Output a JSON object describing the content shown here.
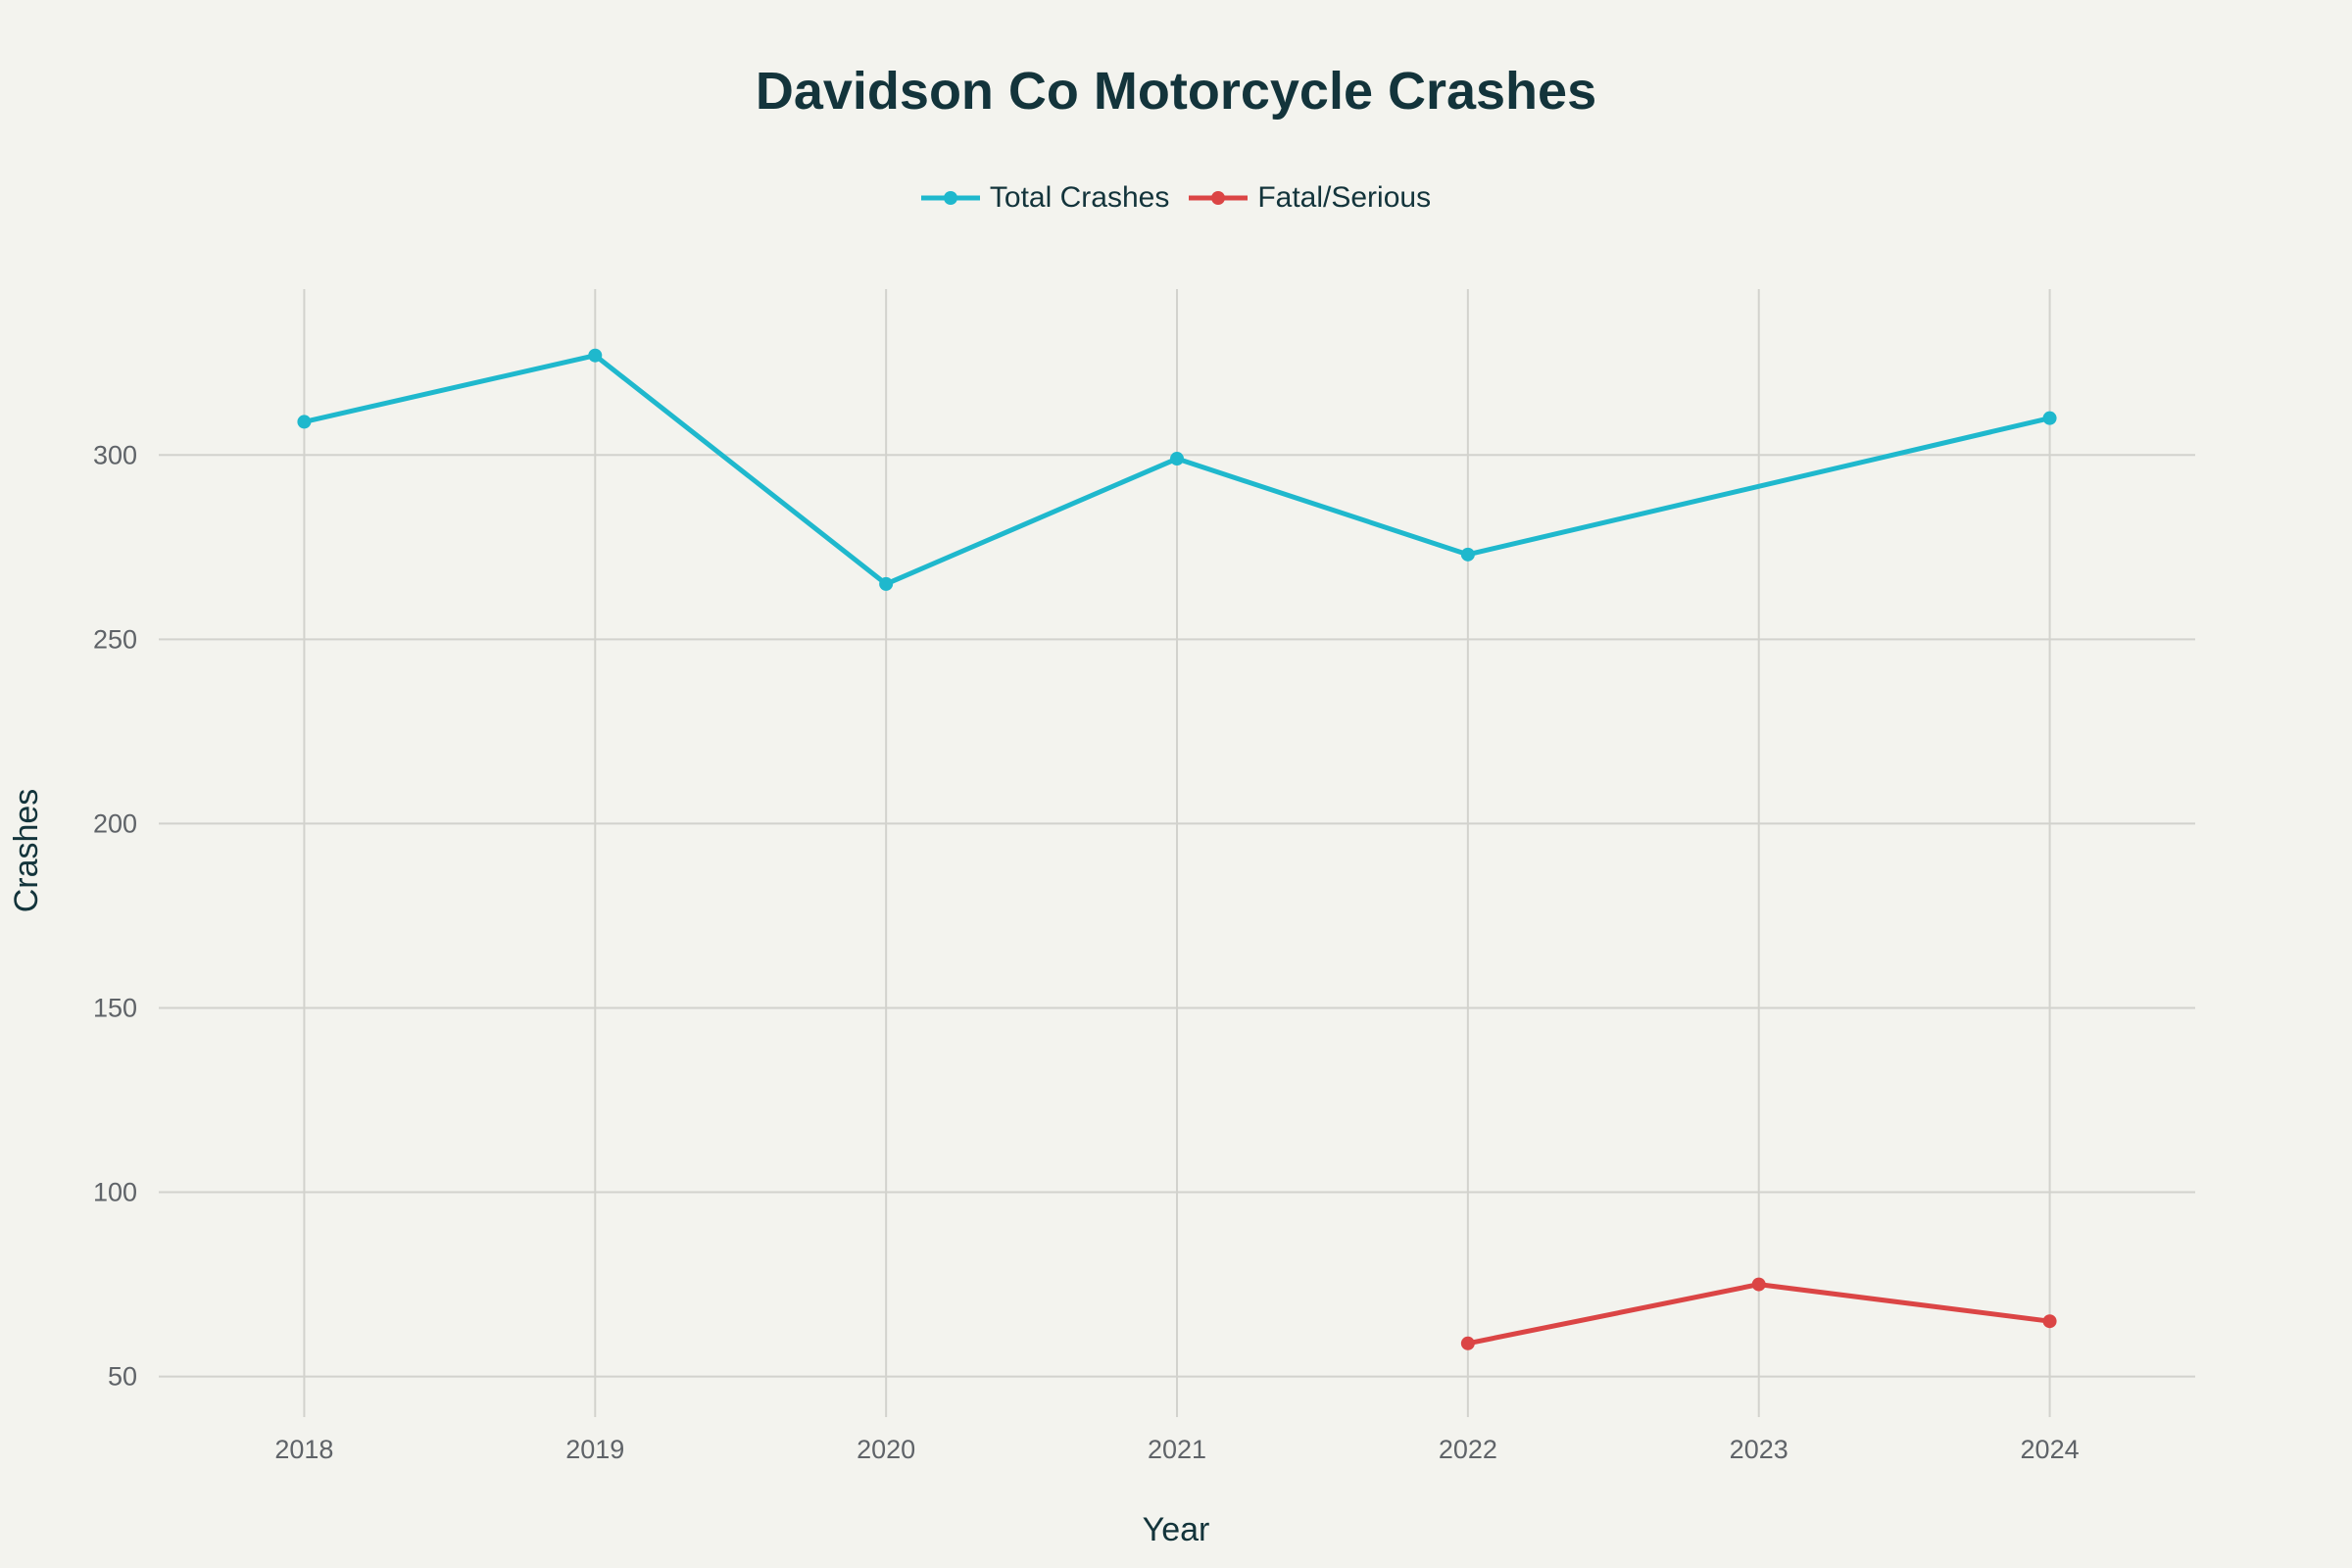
{
  "chart_data": {
    "type": "line",
    "title": "Davidson Co Motorcycle Crashes",
    "xlabel": "Year",
    "ylabel": "Crashes",
    "x": [
      2018,
      2019,
      2020,
      2021,
      2022,
      2023,
      2024
    ],
    "x_ticks": [
      "2018",
      "2019",
      "2020",
      "2021",
      "2022",
      "2023",
      "2024"
    ],
    "y_ticks": [
      "50",
      "100",
      "150",
      "200",
      "250",
      "300"
    ],
    "y_tick_values": [
      50,
      100,
      150,
      200,
      250,
      300
    ],
    "xlim": [
      2017.5,
      2024.5
    ],
    "ylim": [
      39,
      345
    ],
    "grid": true,
    "legend_position": "top-center",
    "series": [
      {
        "name": "Total Crashes",
        "color": "#1fb8cd",
        "values": [
          309,
          327,
          265,
          299,
          273,
          null,
          310
        ]
      },
      {
        "name": "Fatal/Serious",
        "color": "#db4545",
        "values": [
          null,
          null,
          null,
          null,
          59,
          75,
          65
        ]
      }
    ]
  }
}
